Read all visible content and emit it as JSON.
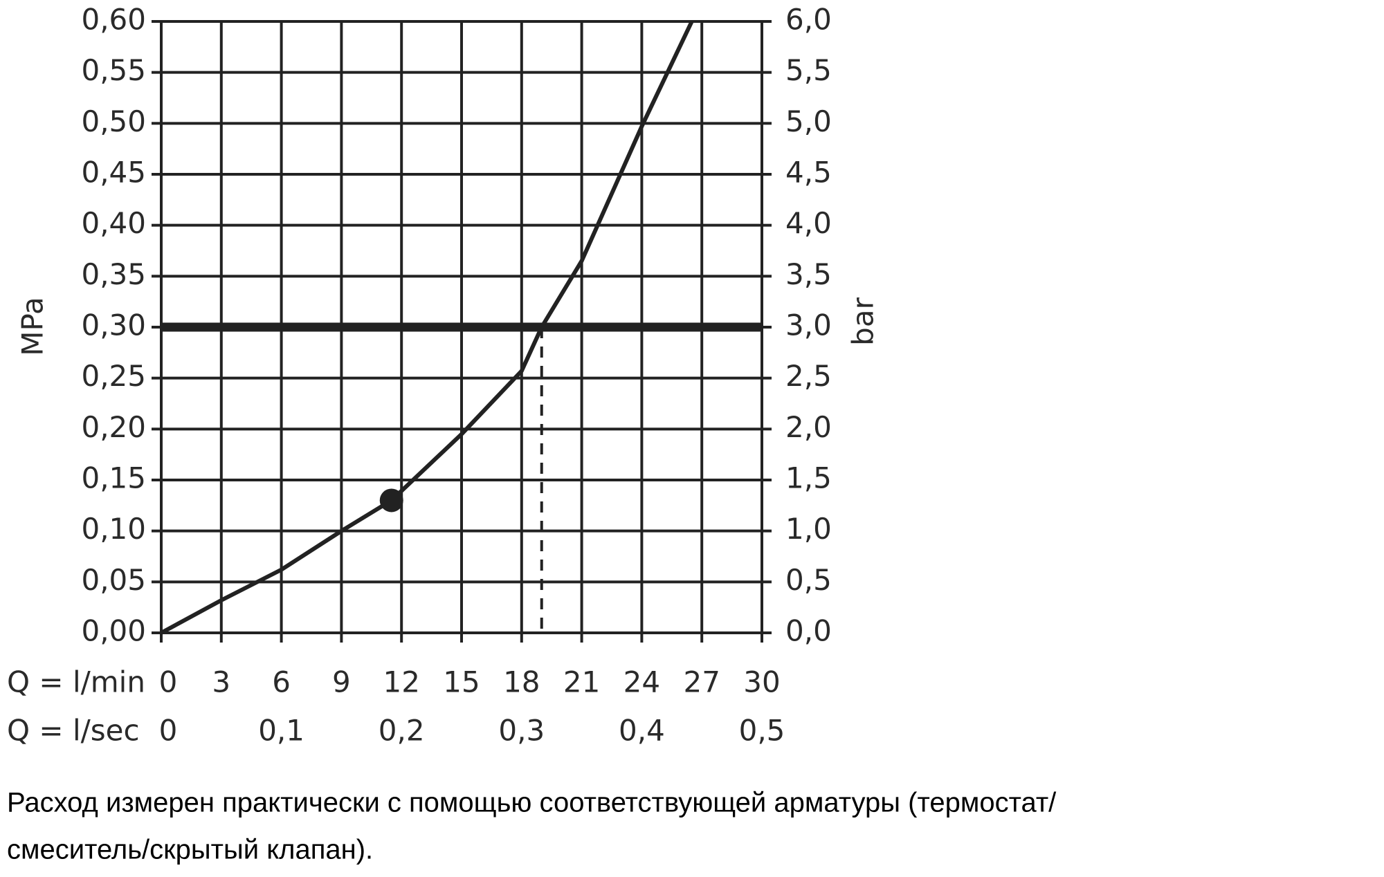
{
  "chart_data": {
    "type": "line",
    "x": [
      0,
      3,
      6,
      9,
      11.5,
      15,
      18,
      19,
      21,
      24,
      26.5
    ],
    "series": [
      {
        "color": "#222222",
        "values": [
          0,
          0.032,
          0.062,
          0.1,
          0.13,
          0.195,
          0.257,
          0.3,
          0.365,
          0.497,
          0.6
        ]
      }
    ],
    "xlabel": "Q = l/min",
    "x2label": "Q = l/sec",
    "ylabel": "MPa",
    "y2label": "bar",
    "xlim": [
      0,
      30
    ],
    "xticks": [
      0,
      3,
      6,
      9,
      12,
      15,
      18,
      21,
      24,
      27,
      30
    ],
    "x2lim": [
      0,
      0.5
    ],
    "x2ticks": [
      0,
      {
        "value": 0.1,
        "label": "0,1"
      },
      {
        "value": 0.2,
        "label": "0,2"
      },
      {
        "value": 0.3,
        "label": "0,3"
      },
      {
        "value": 0.4,
        "label": "0,4"
      },
      {
        "value": 0.5,
        "label": "0,5"
      }
    ],
    "ylim": [
      0,
      0.6
    ],
    "yticks": [
      {
        "value": 0,
        "label": "0,00"
      },
      {
        "value": 0.05,
        "label": "0,05"
      },
      {
        "value": 0.1,
        "label": "0,10"
      },
      {
        "value": 0.15,
        "label": "0,15"
      },
      {
        "value": 0.2,
        "label": "0,20"
      },
      {
        "value": 0.25,
        "label": "0,25"
      },
      {
        "value": 0.3,
        "label": "0,30"
      },
      {
        "value": 0.35,
        "label": "0,35"
      },
      {
        "value": 0.4,
        "label": "0,40"
      },
      {
        "value": 0.45,
        "label": "0,45"
      },
      {
        "value": 0.5,
        "label": "0,50"
      },
      {
        "value": 0.55,
        "label": "0,55"
      },
      {
        "value": 0.6,
        "label": "0,60"
      }
    ],
    "y2lim": [
      0,
      6
    ],
    "y2ticks": [
      {
        "value": 0,
        "label": "0,0"
      },
      {
        "value": 0.5,
        "label": "0,5"
      },
      {
        "value": 1,
        "label": "1,0"
      },
      {
        "value": 1.5,
        "label": "1,5"
      },
      {
        "value": 2,
        "label": "2,0"
      },
      {
        "value": 2.5,
        "label": "2,5"
      },
      {
        "value": 3,
        "label": "3,0"
      },
      {
        "value": 3.5,
        "label": "3,5"
      },
      {
        "value": 4,
        "label": "4,0"
      },
      {
        "value": 4.5,
        "label": "4,5"
      },
      {
        "value": 5,
        "label": "5,0"
      },
      {
        "value": 5.5,
        "label": "5,5"
      },
      {
        "value": 6,
        "label": "6,0"
      }
    ],
    "grid": true,
    "hlines": [
      0.3
    ],
    "vlines": [
      19
    ],
    "points": [
      {
        "x": 11.5,
        "y": 0.13
      }
    ],
    "notes": [
      "Расход измерен практически с помощью соответствующей арматуры (термостат/",
      "смеситель/скрытый клапан)."
    ]
  }
}
